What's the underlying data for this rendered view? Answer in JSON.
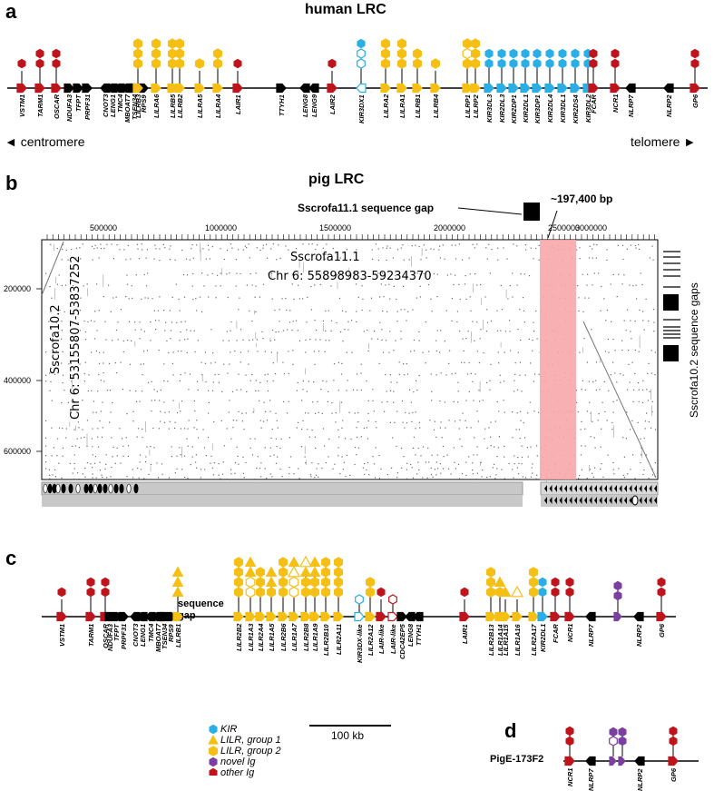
{
  "panels": {
    "a": {
      "letter": "a",
      "title": "human LRC",
      "centromere": "◄ centromere",
      "telomere": "telomere ►",
      "genes": [
        "VSTM1",
        "TARM1",
        "OSCAR",
        "NDUFA3",
        "TFPT",
        "PRPF31",
        "CNOT3",
        "LENG1",
        "TMC4",
        "MBOAT7",
        "TSEN34",
        "RPS9",
        "LILRB3",
        "LILRA6",
        "LILRB5",
        "LILRB2",
        "LILRA5",
        "LILRA4",
        "LAIR1",
        "TTYH1",
        "LENG8",
        "LENG9",
        "LAIR2",
        "KIR3DX1",
        "LILRA2",
        "LILRA1",
        "LILRB1",
        "LILRB4",
        "LILRP1",
        "LILRP2",
        "KIR3DL3",
        "KIR2DL3",
        "KIR2DP1",
        "KIR2DL1",
        "KIR3DP1",
        "KIR2DL4",
        "KIR3DL1",
        "KIR2DS4",
        "KIR3DL2",
        "FCAR",
        "NCR1",
        "NLRP7",
        "NLRP2",
        "GP6"
      ]
    },
    "b": {
      "letter": "b",
      "title": "pig LRC",
      "gap11": "Sscrofa11.1 sequence gap",
      "bp": "~197,400 bp",
      "xaxis_title": "Sscrofa11.1",
      "xaxis_sub": "Chr 6: 55898983-59234370",
      "yaxis_title": "Sscrofa10.2",
      "yaxis_sub": "Chr 6: 53155807-53837252",
      "gaps102": "Sscrofa10.2 sequence gaps",
      "xticks": [
        "500000",
        "1000000",
        "1500000",
        "2000000",
        "2500000",
        "3000000"
      ],
      "yticks": [
        "200000",
        "400000",
        "600000"
      ]
    },
    "c": {
      "letter": "c",
      "seq_gap": "sequence gap",
      "genes": [
        "VSTM1",
        "TARM1",
        "OSCAR",
        "NDUFA3",
        "TFPT",
        "PRPF31",
        "CNOT3",
        "LENG1",
        "TMC4",
        "MBOAT7",
        "TSEN34",
        "RPS9",
        "LILRB1",
        "LILR2B2",
        "LILR1A3",
        "LILR2A4",
        "LILR1A5",
        "LILR2B6",
        "LILR1A7",
        "LILR2B8",
        "LILR1A9",
        "LILR2B10",
        "LILR2A11",
        "KIR3DX-like",
        "LILR2A12",
        "LAIR-like",
        "LAIR-like",
        "CDC42EP5",
        "LENG8",
        "TTYH1",
        "LAIR1",
        "LILR2B13",
        "LILR1A14",
        "LILR1A15",
        "LILR1A16",
        "LILR2A17",
        "KIR2DL1",
        "FCAR",
        "NCR1",
        "NLRP7",
        "NLRP2",
        "GP6"
      ]
    },
    "d": {
      "letter": "d",
      "clone": "PigE-173F2",
      "genes": [
        "NCR1",
        "NLRP7",
        "NLRP2",
        "GP6"
      ]
    }
  },
  "legend": {
    "items": [
      {
        "label": "KIR",
        "color": "#29aee6",
        "shape": "hexagon"
      },
      {
        "label": "LILR, group 1",
        "color": "#f5bf14",
        "shape": "triangle"
      },
      {
        "label": "LILR, group 2",
        "color": "#f5bf14",
        "shape": "hexagon"
      },
      {
        "label": "novel Ig",
        "color": "#7b3fa0",
        "shape": "hexagon"
      },
      {
        "label": "other Ig",
        "color": "#c0141c",
        "shape": "hexagon"
      }
    ],
    "scale": "100 kb"
  },
  "colors": {
    "kir": "#29aee6",
    "lilr": "#f5bf14",
    "novel": "#7b3fa0",
    "other": "#c0141c",
    "highlight": "#f8a7ab",
    "bar": "#c8c8c8"
  }
}
